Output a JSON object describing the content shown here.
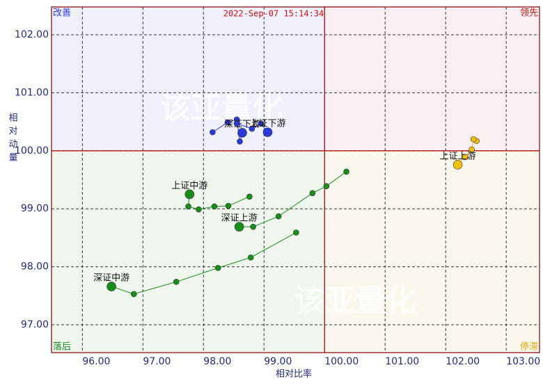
{
  "chart_data": {
    "type": "rrg",
    "timestamp": "2022-Sep-07 15:14:34",
    "xlabel": "相对比率",
    "ylabel": "相对动量",
    "quadrant_labels": {
      "top_left": "改善",
      "top_right": "领先",
      "bottom_left": "落后",
      "bottom_right": "停滞"
    },
    "quadrant_center": [
      100,
      100
    ],
    "watermark": "该亚量化",
    "xlim": [
      95.49,
      103.55
    ],
    "ylim": [
      96.52,
      102.48
    ],
    "xticks": [
      {
        "value": 96,
        "label": "96.00"
      },
      {
        "value": 97,
        "label": "97.00"
      },
      {
        "value": 98,
        "label": "98.00"
      },
      {
        "value": 99,
        "label": "99.00"
      },
      {
        "value": 100,
        "label": "100.00"
      },
      {
        "value": 101,
        "label": "101.00"
      },
      {
        "value": 102,
        "label": "102.00"
      },
      {
        "value": 103,
        "label": "103.00"
      }
    ],
    "yticks": [
      {
        "value": 97,
        "label": "97.00"
      },
      {
        "value": 98,
        "label": "98.00"
      },
      {
        "value": 99,
        "label": "99.00"
      },
      {
        "value": 100,
        "label": "100.00"
      },
      {
        "value": 101,
        "label": "101.00"
      },
      {
        "value": 102,
        "label": "102.00"
      }
    ],
    "grid": true,
    "series": [
      {
        "name": "深证上游",
        "color": "#1a8c1a",
        "x": [
          100.36,
          100.03,
          99.8,
          99.24,
          98.82,
          98.59
        ],
        "values": [
          99.64,
          99.39,
          99.27,
          98.87,
          98.69,
          98.69
        ]
      },
      {
        "name": "深证中游",
        "color": "#1a8c1a",
        "x": [
          99.53,
          98.78,
          98.24,
          97.55,
          96.85,
          96.48
        ],
        "values": [
          98.59,
          98.16,
          97.98,
          97.74,
          97.53,
          97.66
        ]
      },
      {
        "name": "上证中游",
        "color": "#1a8c1a",
        "x": [
          98.76,
          98.41,
          98.18,
          97.92,
          97.75,
          97.77
        ],
        "values": [
          99.21,
          99.05,
          99.04,
          98.99,
          99.04,
          99.25
        ]
      },
      {
        "name": "深证下游",
        "color": "#2a3ad8",
        "x": [
          98.15,
          98.4,
          98.55,
          98.6,
          98.64
        ],
        "values": [
          100.32,
          100.49,
          100.54,
          100.16,
          100.31
        ]
      },
      {
        "name": "上证下游",
        "color": "#2a3ad8",
        "x": [
          98.55,
          98.8,
          98.95,
          99.06
        ],
        "values": [
          100.47,
          100.38,
          100.47,
          100.32
        ]
      },
      {
        "name": "上证上游",
        "color": "#f0c010",
        "x": [
          102.51,
          102.46,
          102.43,
          102.32,
          102.2
        ],
        "values": [
          100.17,
          100.2,
          100.02,
          99.89,
          99.76
        ]
      }
    ]
  }
}
